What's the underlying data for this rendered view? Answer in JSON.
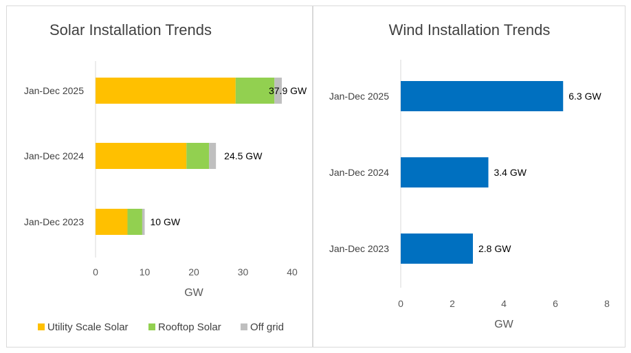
{
  "chart_data": [
    {
      "type": "bar",
      "orientation": "horizontal",
      "stacked": true,
      "title": "Solar Installation Trends",
      "xlabel": "GW",
      "ylabel": "",
      "categories": [
        "Jan-Dec 2025",
        "Jan-Dec 2024",
        "Jan-Dec 2023"
      ],
      "series": [
        {
          "name": "Utility Scale Solar",
          "color": "#FFC000",
          "values": [
            28.5,
            18.5,
            6.5
          ]
        },
        {
          "name": "Rooftop Solar",
          "color": "#92D050",
          "values": [
            7.9,
            4.6,
            3.0
          ]
        },
        {
          "name": "Off grid",
          "color": "#BFBFBF",
          "values": [
            1.5,
            1.4,
            0.5
          ]
        }
      ],
      "totals": [
        "37.9 GW",
        "24.5 GW",
        "10 GW"
      ],
      "xlim": [
        0,
        40
      ],
      "xticks": [
        0,
        10,
        20,
        30,
        40
      ],
      "grid": false,
      "legend": "bottom"
    },
    {
      "type": "bar",
      "orientation": "horizontal",
      "stacked": false,
      "title": "Wind Installation Trends",
      "xlabel": "GW",
      "ylabel": "",
      "categories": [
        "Jan-Dec 2025",
        "Jan-Dec 2024",
        "Jan-Dec 2023"
      ],
      "series": [
        {
          "color": "#0070C0",
          "values": [
            6.3,
            3.4,
            2.8
          ]
        }
      ],
      "labels": [
        "6.3 GW",
        "3.4 GW",
        "2.8 GW"
      ],
      "xlim": [
        0,
        8
      ],
      "xticks": [
        0,
        2,
        4,
        6,
        8
      ],
      "grid": false,
      "legend": "none"
    }
  ]
}
